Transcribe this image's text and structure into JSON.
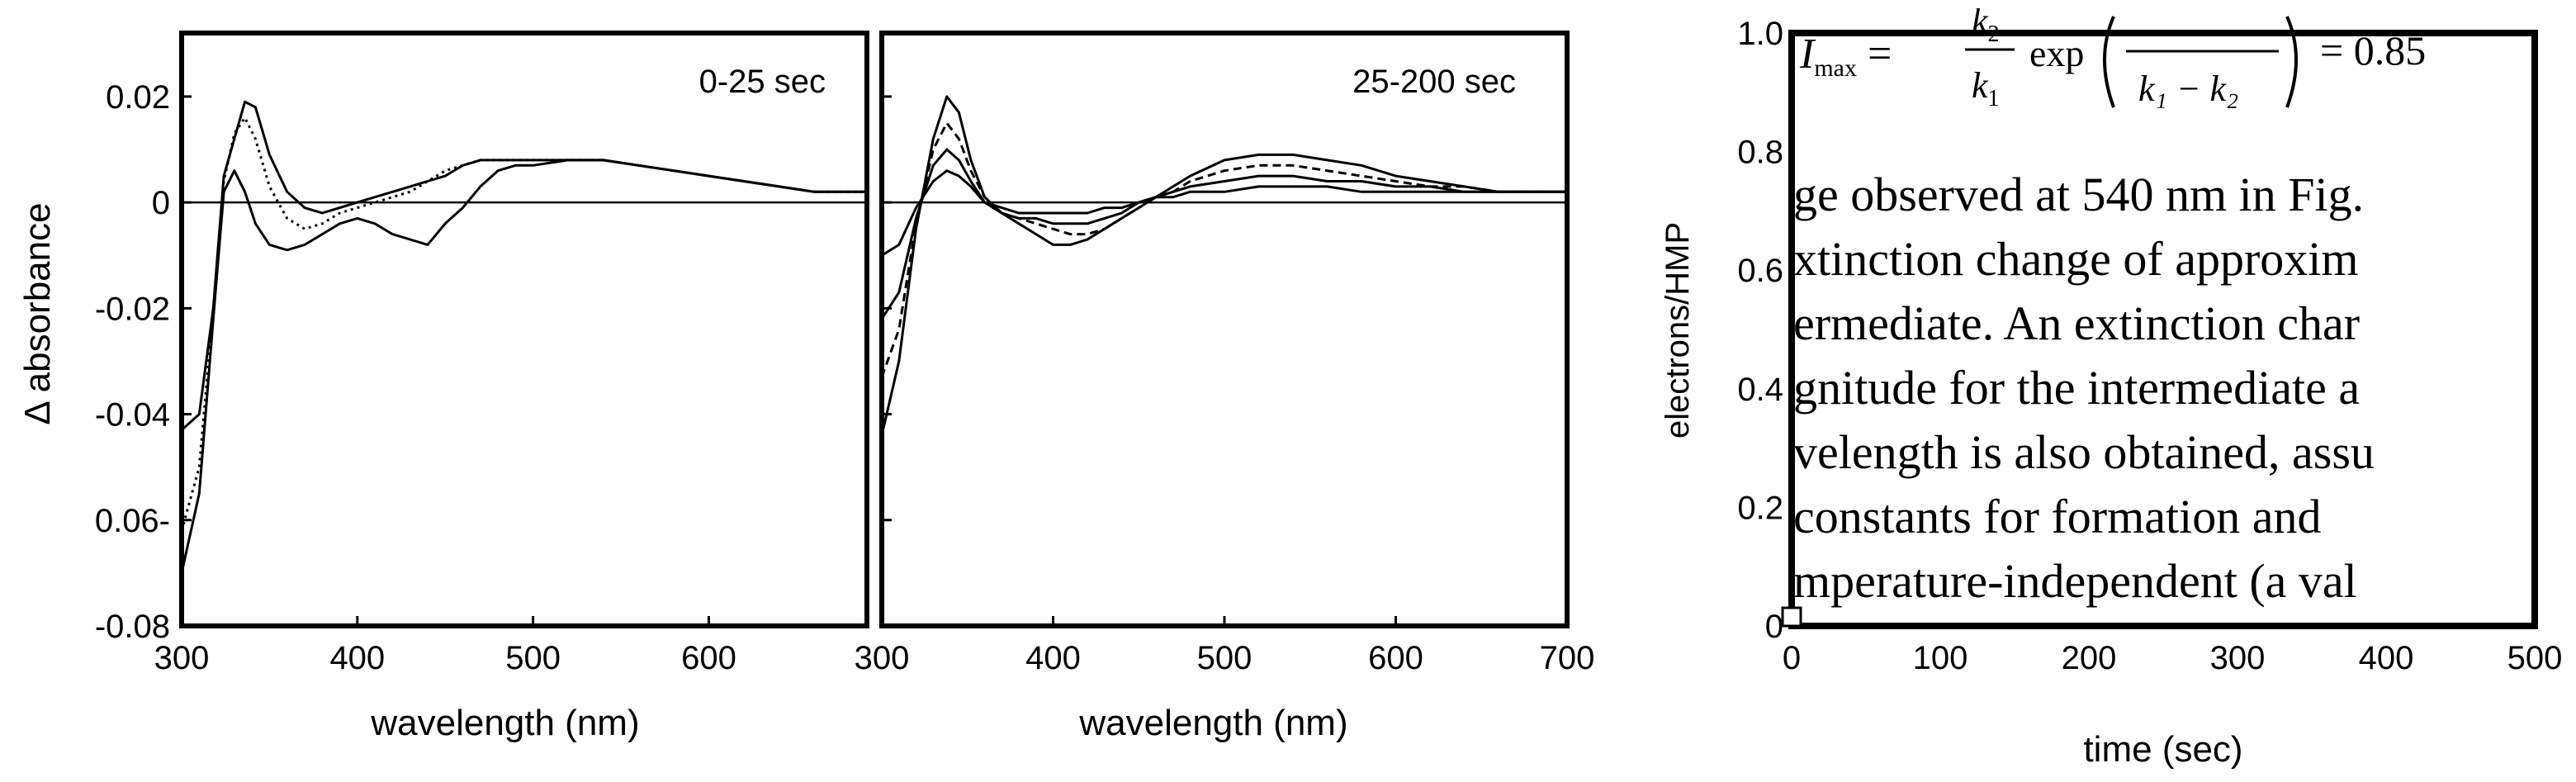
{
  "chart_data": [
    {
      "type": "line",
      "panel": "left",
      "annotation": "0-25 sec",
      "xlabel": "wavelength (nm)",
      "ylabel": "Δ absorbance",
      "xlim": [
        300,
        690
      ],
      "ylim": [
        -0.08,
        0.032
      ],
      "xticks": [
        300,
        400,
        500,
        600
      ],
      "xtick_labels": [
        "300",
        "400",
        "500",
        "600"
      ],
      "yticks": [
        0.02,
        0,
        -0.02,
        -0.04,
        -0.06,
        -0.08
      ],
      "ytick_labels": [
        "0.02",
        "0",
        "-0.02",
        "-0.04",
        "0.06-",
        "-0.08"
      ],
      "baseline": 0,
      "series": [
        {
          "name": "trace-1",
          "style": "solid",
          "x": [
            300,
            310,
            318,
            324,
            330,
            336,
            342,
            350,
            360,
            370,
            380,
            390,
            400,
            410,
            420,
            430,
            440,
            450,
            460,
            470,
            480,
            490,
            500,
            520,
            540,
            560,
            580,
            600,
            620,
            640,
            660,
            680,
            690
          ],
          "y": [
            -0.043,
            -0.04,
            -0.02,
            0.005,
            0.012,
            0.019,
            0.018,
            0.009,
            0.002,
            -0.001,
            -0.002,
            -0.001,
            0.0,
            0.001,
            0.002,
            0.003,
            0.004,
            0.005,
            0.007,
            0.008,
            0.008,
            0.008,
            0.008,
            0.008,
            0.008,
            0.007,
            0.006,
            0.005,
            0.004,
            0.003,
            0.002,
            0.002,
            0.002
          ]
        },
        {
          "name": "trace-2",
          "style": "dotted",
          "x": [
            300,
            310,
            318,
            324,
            330,
            336,
            342,
            350,
            360,
            370,
            380,
            390,
            400,
            410,
            420,
            430,
            440,
            450,
            460,
            470,
            480,
            490,
            500,
            520,
            540,
            560,
            580,
            600,
            620,
            640,
            660,
            680,
            690
          ],
          "y": [
            -0.062,
            -0.05,
            -0.02,
            0.004,
            0.013,
            0.016,
            0.012,
            0.003,
            -0.003,
            -0.005,
            -0.004,
            -0.002,
            -0.001,
            0.0,
            0.001,
            0.002,
            0.004,
            0.006,
            0.007,
            0.008,
            0.008,
            0.008,
            0.008,
            0.008,
            0.008,
            0.007,
            0.006,
            0.005,
            0.004,
            0.003,
            0.002,
            0.002,
            0.002
          ]
        },
        {
          "name": "trace-3",
          "style": "solid",
          "x": [
            300,
            310,
            318,
            324,
            330,
            336,
            342,
            350,
            360,
            370,
            380,
            390,
            400,
            410,
            420,
            430,
            440,
            450,
            460,
            470,
            480,
            490,
            500,
            520,
            540,
            560,
            580,
            600,
            620,
            640,
            660,
            680,
            690
          ],
          "y": [
            -0.07,
            -0.055,
            -0.022,
            0.002,
            0.006,
            0.002,
            -0.004,
            -0.008,
            -0.009,
            -0.008,
            -0.006,
            -0.004,
            -0.003,
            -0.004,
            -0.006,
            -0.007,
            -0.008,
            -0.004,
            -0.001,
            0.003,
            0.006,
            0.007,
            0.007,
            0.008,
            0.008,
            0.007,
            0.006,
            0.005,
            0.004,
            0.003,
            0.002,
            0.002,
            0.002
          ]
        }
      ]
    },
    {
      "type": "line",
      "panel": "middle",
      "annotation": "25-200 sec",
      "xlabel": "wavelength (nm)",
      "ylabel": "",
      "xlim": [
        300,
        700
      ],
      "ylim": [
        -0.08,
        0.032
      ],
      "xticks": [
        300,
        400,
        500,
        600,
        700
      ],
      "xtick_labels": [
        "300",
        "400",
        "500",
        "600",
        "700"
      ],
      "baseline": 0,
      "series": [
        {
          "name": "trace-1",
          "style": "solid",
          "x": [
            300,
            310,
            320,
            330,
            338,
            345,
            352,
            360,
            370,
            380,
            390,
            400,
            410,
            420,
            430,
            440,
            450,
            460,
            470,
            480,
            500,
            520,
            540,
            560,
            580,
            600,
            620,
            640,
            660,
            680,
            700
          ],
          "y": [
            -0.044,
            -0.03,
            -0.005,
            0.012,
            0.02,
            0.017,
            0.008,
            0.001,
            -0.002,
            -0.004,
            -0.006,
            -0.008,
            -0.008,
            -0.007,
            -0.005,
            -0.003,
            -0.001,
            0.001,
            0.003,
            0.005,
            0.008,
            0.009,
            0.009,
            0.008,
            0.007,
            0.005,
            0.004,
            0.003,
            0.002,
            0.002,
            0.002
          ]
        },
        {
          "name": "trace-2",
          "style": "dashed",
          "x": [
            300,
            310,
            320,
            330,
            338,
            345,
            352,
            360,
            370,
            380,
            390,
            400,
            410,
            420,
            430,
            440,
            450,
            460,
            470,
            480,
            500,
            520,
            540,
            560,
            580,
            600,
            620,
            640,
            660,
            680,
            700
          ],
          "y": [
            -0.033,
            -0.024,
            -0.004,
            0.01,
            0.015,
            0.012,
            0.006,
            0.001,
            -0.002,
            -0.003,
            -0.004,
            -0.005,
            -0.006,
            -0.006,
            -0.005,
            -0.003,
            -0.001,
            0.001,
            0.002,
            0.004,
            0.006,
            0.007,
            0.007,
            0.006,
            0.005,
            0.004,
            0.003,
            0.003,
            0.002,
            0.002,
            0.002
          ]
        },
        {
          "name": "trace-3",
          "style": "solid",
          "x": [
            300,
            310,
            320,
            330,
            338,
            345,
            352,
            360,
            370,
            380,
            390,
            400,
            410,
            420,
            430,
            440,
            450,
            460,
            470,
            480,
            500,
            520,
            540,
            560,
            580,
            600,
            620,
            640,
            660,
            680,
            700
          ],
          "y": [
            -0.022,
            -0.017,
            -0.003,
            0.007,
            0.01,
            0.008,
            0.004,
            0.0,
            -0.002,
            -0.003,
            -0.003,
            -0.004,
            -0.004,
            -0.004,
            -0.003,
            -0.002,
            0.0,
            0.001,
            0.002,
            0.003,
            0.004,
            0.005,
            0.005,
            0.004,
            0.004,
            0.003,
            0.003,
            0.002,
            0.002,
            0.002,
            0.002
          ]
        },
        {
          "name": "trace-4",
          "style": "solid",
          "x": [
            300,
            310,
            320,
            330,
            338,
            345,
            352,
            360,
            370,
            380,
            390,
            400,
            410,
            420,
            430,
            440,
            450,
            460,
            470,
            480,
            500,
            520,
            540,
            560,
            580,
            600,
            620,
            640,
            660,
            680,
            700
          ],
          "y": [
            -0.01,
            -0.008,
            -0.001,
            0.004,
            0.006,
            0.005,
            0.003,
            0.0,
            -0.001,
            -0.002,
            -0.002,
            -0.002,
            -0.002,
            -0.002,
            -0.001,
            -0.001,
            0.0,
            0.001,
            0.001,
            0.002,
            0.002,
            0.003,
            0.003,
            0.003,
            0.002,
            0.002,
            0.002,
            0.002,
            0.002,
            0.002,
            0.002
          ]
        }
      ]
    },
    {
      "type": "scatter",
      "panel": "right",
      "xlabel": "time (sec)",
      "ylabel": "electrons/HMP",
      "xlim": [
        0,
        500
      ],
      "ylim": [
        0,
        1.0
      ],
      "xticks": [
        0,
        100,
        200,
        300,
        400,
        500
      ],
      "xtick_labels": [
        "0",
        "100",
        "200",
        "300",
        "400",
        "500"
      ],
      "yticks": [
        0,
        0.2,
        0.4,
        0.6,
        0.8,
        1.0
      ],
      "ytick_labels": [
        "0",
        "0.2",
        "0.4",
        "0.6",
        "0.8",
        "1.0"
      ],
      "points": [
        {
          "x": 0,
          "y": 0
        }
      ]
    }
  ],
  "overlay_text": {
    "equation_head": "I",
    "equation_sub": "max",
    "equation_lhs_tail": " = ",
    "frac1_top": "k",
    "frac1_top_sub": "2",
    "frac1_bottom": "k",
    "frac1_bottom_sub": "1",
    "exp_word": "exp",
    "frac2_bottom": "k₁ − k₂",
    "equation_rhs": "= 0.85",
    "lines": [
      "ge observed at 540 nm in Fig.",
      "xtinction change of approxim",
      "ermediate. An extinction char",
      "gnitude for the intermediate a",
      "velength is also obtained, assu",
      " constants for formation and",
      "mperature-independent (a val"
    ]
  }
}
